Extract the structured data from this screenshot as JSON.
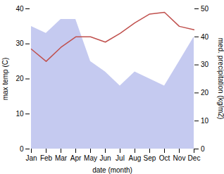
{
  "chart_data": {
    "type": "line",
    "categories": [
      "Jan",
      "Feb",
      "Mar",
      "Apr",
      "May",
      "Jun",
      "Jul",
      "Aug",
      "Sep",
      "Oct",
      "Nov",
      "Dec"
    ],
    "series": [
      {
        "type": "area",
        "color": "#c5caf0",
        "values": [
          35,
          33,
          37,
          37,
          25,
          22,
          18,
          22,
          20,
          18,
          25,
          32
        ]
      },
      {
        "type": "line",
        "color": "#c0504d",
        "values": [
          28.5,
          25.0,
          29.0,
          32.0,
          32.0,
          30.5,
          33.0,
          36.0,
          38.5,
          39.0,
          35.0,
          34.0
        ]
      }
    ],
    "xlabel": "date (month)",
    "ylabel": "max temp (C)",
    "y2label": "med. precipitation (kg/m2)",
    "ylim": [
      0,
      40
    ],
    "yticks": [
      0,
      10,
      20,
      30,
      40
    ],
    "y2lim": [
      0,
      50
    ],
    "y2ticks": [
      0,
      10,
      20,
      30,
      40,
      50
    ]
  }
}
